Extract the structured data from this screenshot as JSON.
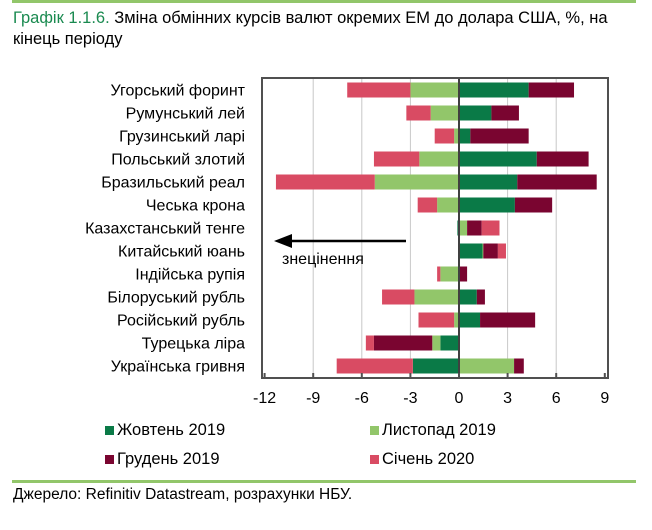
{
  "title": {
    "number": "Графік 1.1.6.",
    "text": " Зміна обмінних курсів валют окремих ЕМ до долара США, %, на кінець періоду"
  },
  "source": "Джерело: Refinitiv Datastream, розрахунки НБУ.",
  "chart_data": {
    "type": "bar",
    "orientation": "horizontal",
    "stacked": true,
    "categories": [
      "Угорський форинт",
      "Румунський лей",
      "Грузинський ларі",
      "Польський злотий",
      "Бразильський реал",
      "Чеська крона",
      "Казахстанський тенге",
      "Китайський юань",
      "Індійська рупія",
      "Білоруський рубль",
      "Російський рубль",
      "Турецька ліра",
      "Українська гривня"
    ],
    "series": [
      {
        "name": "Жовтень 2019",
        "color": "#0a7a47",
        "values": [
          4.3,
          2.0,
          0.7,
          4.8,
          3.6,
          3.45,
          -0.1,
          1.45,
          0,
          1.1,
          1.3,
          -1.15,
          -2.85
        ]
      },
      {
        "name": "Листопад 2019",
        "color": "#92c66a",
        "values": [
          -3.0,
          -1.75,
          -0.3,
          -2.45,
          -5.2,
          -1.35,
          0.5,
          0.05,
          -1.15,
          -2.75,
          -0.3,
          -0.5,
          3.4
        ]
      },
      {
        "name": "Грудень 2019",
        "color": "#7a0530",
        "values": [
          2.8,
          1.7,
          3.6,
          3.2,
          4.9,
          2.3,
          0.9,
          0.9,
          0.5,
          0.5,
          3.4,
          -3.6,
          0.6
        ]
      },
      {
        "name": "Січень 2020",
        "color": "#d94b63",
        "values": [
          -3.9,
          -1.5,
          -1.2,
          -2.8,
          -6.1,
          -1.2,
          1.1,
          0.5,
          -0.2,
          -2.0,
          -2.2,
          -0.5,
          -4.7
        ]
      }
    ],
    "xlim": [
      -12,
      9
    ],
    "xticks": [
      "-12",
      "-9",
      "-6",
      "-3",
      "0",
      "3",
      "6",
      "9"
    ],
    "grid": true,
    "legend_placement": "bottom",
    "annotation": "знецінення"
  }
}
